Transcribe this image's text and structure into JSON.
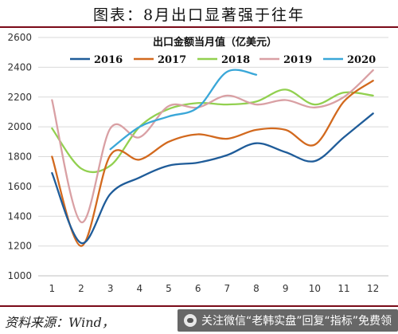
{
  "header": {
    "title": "图表：8月出口显著强于往年"
  },
  "source": {
    "text": "资料来源：Wind，",
    "watermark": "关注微信“老韩实盘”回复“指标”免费领"
  },
  "chart_data": {
    "type": "line",
    "title": "出口金额当月值（亿美元）",
    "xlabel": "",
    "ylabel": "",
    "categories": [
      "1",
      "2",
      "3",
      "4",
      "5",
      "6",
      "7",
      "8",
      "9",
      "10",
      "11",
      "12"
    ],
    "ylim": [
      1000,
      2600
    ],
    "yticks": [
      1000,
      1200,
      1400,
      1600,
      1800,
      2000,
      2200,
      2400,
      2600
    ],
    "grid": "horizontal",
    "legend_position": "top",
    "series": [
      {
        "name": "2016",
        "color": "#1f5c99",
        "values": [
          1690,
          1220,
          1550,
          1660,
          1740,
          1760,
          1810,
          1890,
          1830,
          1770,
          1930,
          2090
        ]
      },
      {
        "name": "2017",
        "color": "#d2691e",
        "values": [
          1800,
          1200,
          1810,
          1780,
          1900,
          1950,
          1920,
          1980,
          1980,
          1880,
          2170,
          2310
        ]
      },
      {
        "name": "2018",
        "color": "#92d050",
        "values": [
          1990,
          1720,
          1740,
          2000,
          2120,
          2160,
          2150,
          2170,
          2250,
          2150,
          2230,
          2210
        ]
      },
      {
        "name": "2019",
        "color": "#d9a0a4",
        "values": [
          2180,
          1360,
          1990,
          1930,
          2140,
          2130,
          2210,
          2150,
          2180,
          2130,
          2200,
          2380
        ]
      },
      {
        "name": "2020",
        "color": "#3aa7d8",
        "values": [
          null,
          null,
          1850,
          2000,
          2070,
          2130,
          2370,
          2350,
          null,
          null,
          null,
          null
        ]
      }
    ]
  }
}
